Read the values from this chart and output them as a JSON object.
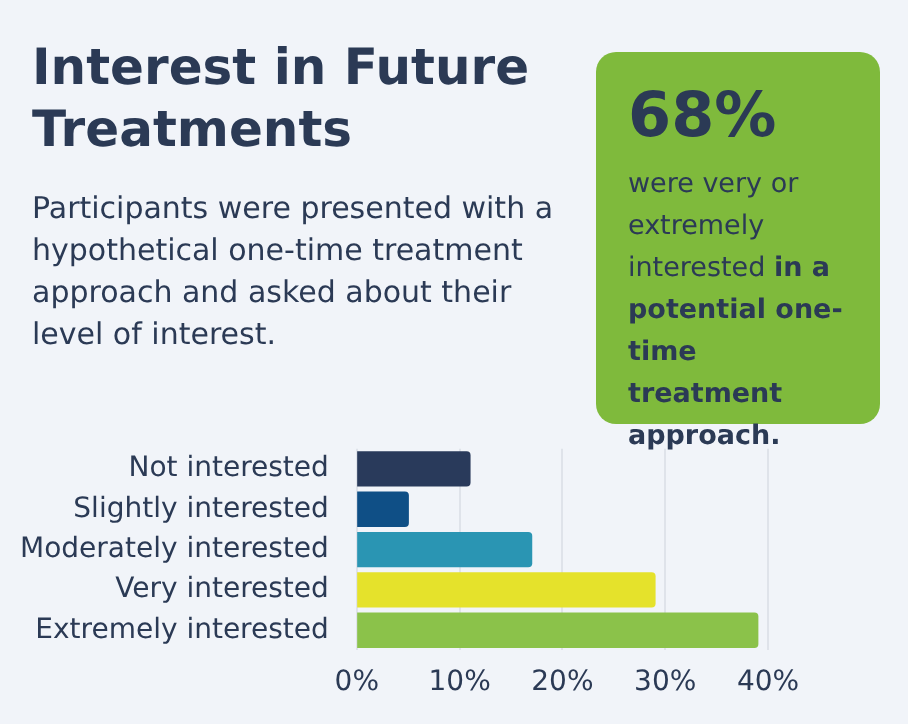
{
  "chart_data": {
    "type": "bar",
    "orientation": "horizontal",
    "title": "Interest in Future Treatments",
    "subtitle": "Participants were presented with a hypothetical one-time treatment approach and asked about their level of interest.",
    "categories": [
      "Not interested",
      "Slightly interested",
      "Moderately interested",
      "Very interested",
      "Extremely interested"
    ],
    "values": [
      11,
      5,
      17,
      29,
      39
    ],
    "colors": [
      "#293a5b",
      "#0f4f86",
      "#2a95b3",
      "#e5e22b",
      "#8bc24a"
    ],
    "xlim": [
      0,
      40
    ],
    "xticks": [
      {
        "value": 0,
        "label": "0%"
      },
      {
        "value": 10,
        "label": "10%"
      },
      {
        "value": 20,
        "label": "20%"
      },
      {
        "value": 30,
        "label": "30%"
      },
      {
        "value": 40,
        "label": "40%"
      }
    ],
    "grid": "x",
    "legend": false,
    "annotations": [
      "68%",
      "were very or extremely interested",
      "in a potential one-time treatment approach."
    ]
  }
}
